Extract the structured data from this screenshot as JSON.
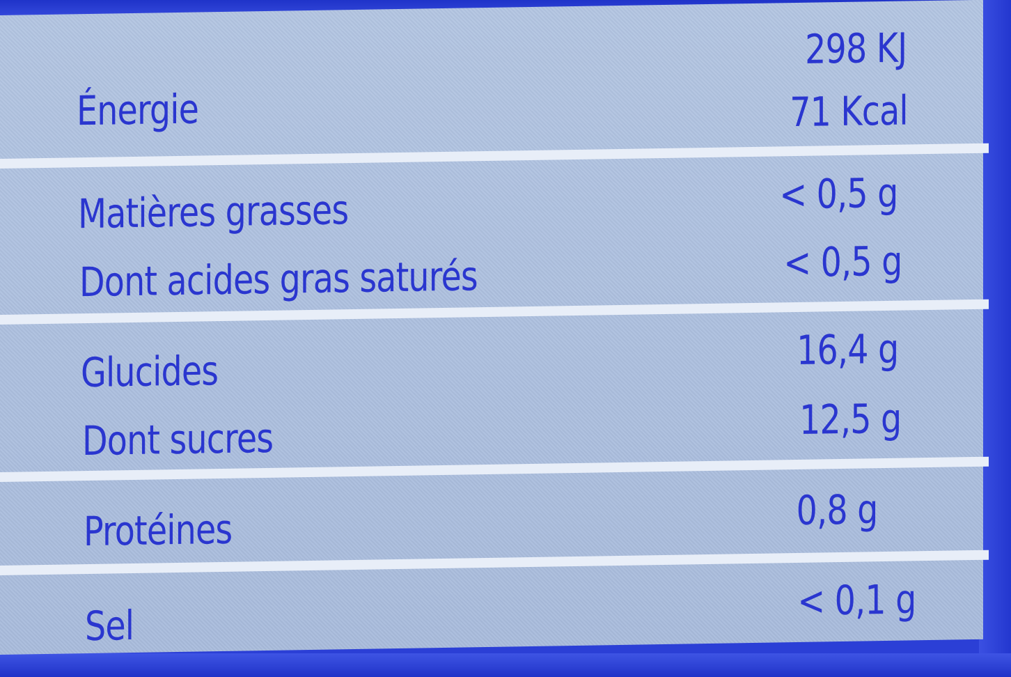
{
  "nutrition_table": {
    "rows": [
      {
        "label": "Énergie",
        "values": [
          "298 KJ",
          "71 Kcal"
        ]
      },
      {
        "label": "Matières grasses",
        "values": [
          "< 0,5 g"
        ]
      },
      {
        "label": "Dont acides gras saturés",
        "values": [
          "< 0,5 g"
        ]
      },
      {
        "label": "Glucides",
        "values": [
          "16,4 g"
        ]
      },
      {
        "label": "Dont sucres",
        "values": [
          "12,5 g"
        ]
      },
      {
        "label": "Protéines",
        "values": [
          "0,8 g"
        ]
      },
      {
        "label": "Sel",
        "values": [
          "< 0,1 g"
        ]
      }
    ]
  },
  "colors": {
    "text": "#2a36cf",
    "panel": "#adc0df",
    "frame": "#2b3fd6",
    "divider": "#e8eef8"
  }
}
